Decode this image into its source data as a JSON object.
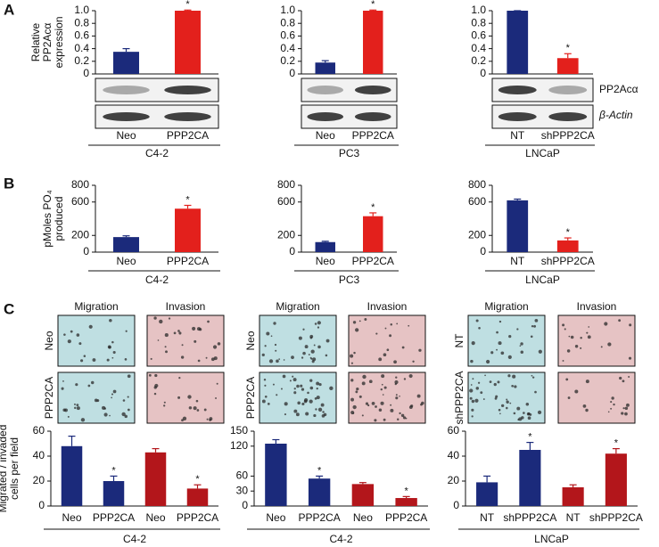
{
  "panel_labels": [
    "A",
    "B",
    "C"
  ],
  "blot_labels": [
    "PP2Acα",
    "β-Actin"
  ],
  "micrographs": [
    {
      "columns": [
        "Migration",
        "Invasion"
      ],
      "rows": [
        "Neo",
        "PPP2CA"
      ]
    },
    {
      "columns": [
        "Migration",
        "Invasion"
      ],
      "rows": [
        "Neo",
        "PPP2CA"
      ]
    },
    {
      "columns": [
        "Migration",
        "Invasion"
      ],
      "rows": [
        "NT",
        "shPPP2CA"
      ]
    }
  ],
  "chart_data": [
    {
      "type": "bar",
      "ylabel": [
        "Relative",
        "PP2Acα",
        "expression"
      ],
      "group_label": "C4-2",
      "categories": [
        "Neo",
        "PPP2CA"
      ],
      "values": [
        0.35,
        1.0
      ],
      "errors": [
        0.05,
        0.01
      ],
      "colors": [
        "#1b2a7b",
        "#e3201c"
      ],
      "significant": [
        false,
        true
      ],
      "star": "*",
      "ylim": [
        0,
        1.0
      ],
      "yticks": [
        0,
        0.2,
        0.4,
        0.6,
        0.8,
        {
          "value": 1.0,
          "label": "1.0"
        }
      ]
    },
    {
      "type": "bar",
      "group_label": "PC3",
      "categories": [
        "Neo",
        "PPP2CA"
      ],
      "values": [
        0.18,
        1.0
      ],
      "errors": [
        0.03,
        0.01
      ],
      "colors": [
        "#1b2a7b",
        "#e3201c"
      ],
      "significant": [
        false,
        true
      ],
      "star": "*",
      "ylim": [
        0,
        1.0
      ],
      "yticks": [
        0,
        0.2,
        0.4,
        0.6,
        0.8,
        {
          "value": 1.0,
          "label": "1.0"
        }
      ]
    },
    {
      "type": "bar",
      "group_label": "LNCaP",
      "categories": [
        "NT",
        "shPPP2CA"
      ],
      "values": [
        1.0,
        0.25
      ],
      "errors": [
        0,
        0.07
      ],
      "colors": [
        "#1b2a7b",
        "#e3201c"
      ],
      "significant": [
        false,
        true
      ],
      "star": "*",
      "ylim": [
        0,
        1.0
      ],
      "yticks": [
        0,
        0.2,
        0.4,
        0.6,
        0.8,
        {
          "value": 1.0,
          "label": "1.0"
        }
      ]
    },
    {
      "type": "bar",
      "ylabel": [
        "pMoles PO₄",
        "produced"
      ],
      "group_label": "C4-2",
      "categories": [
        "Neo",
        "PPP2CA"
      ],
      "values": [
        180,
        520
      ],
      "errors": [
        15,
        40
      ],
      "colors": [
        "#1b2a7b",
        "#e3201c"
      ],
      "significant": [
        false,
        true
      ],
      "star": "*",
      "ylim": [
        0,
        800
      ],
      "yticks": [
        0,
        200,
        600,
        800
      ]
    },
    {
      "type": "bar",
      "group_label": "PC3",
      "categories": [
        "Neo",
        "PPP2CA"
      ],
      "values": [
        120,
        430
      ],
      "errors": [
        10,
        40
      ],
      "colors": [
        "#1b2a7b",
        "#e3201c"
      ],
      "significant": [
        false,
        true
      ],
      "star": "*",
      "ylim": [
        0,
        800
      ],
      "yticks": [
        0,
        200,
        600,
        800
      ]
    },
    {
      "type": "bar",
      "group_label": "LNCaP",
      "categories": [
        "NT",
        "shPPP2CA"
      ],
      "values": [
        620,
        140
      ],
      "errors": [
        15,
        30
      ],
      "colors": [
        "#1b2a7b",
        "#e3201c"
      ],
      "significant": [
        false,
        true
      ],
      "star": "*",
      "ylim": [
        0,
        800
      ],
      "yticks": [
        0,
        200,
        600,
        800
      ]
    },
    {
      "type": "bar",
      "ylabel": [
        "Migrated / invaded",
        "cells per field"
      ],
      "group_label": "C4-2",
      "categories": [
        "Neo",
        "PPP2CA",
        "Neo",
        "PPP2CA"
      ],
      "values": [
        48,
        20,
        43,
        14
      ],
      "errors": [
        8,
        4,
        3,
        3
      ],
      "colors": [
        "#1b2a7b",
        "#1b2a7b",
        "#b3161b",
        "#b3161b"
      ],
      "significant": [
        false,
        true,
        false,
        true
      ],
      "star": "*",
      "ylim": [
        0,
        60
      ],
      "yticks": [
        0,
        20,
        40,
        60
      ]
    },
    {
      "type": "bar",
      "group_label": "C4-2",
      "categories": [
        "Neo",
        "PPP2CA",
        "Neo",
        "PPP2CA"
      ],
      "values": [
        125,
        55,
        44,
        16
      ],
      "errors": [
        8,
        5,
        3,
        3
      ],
      "colors": [
        "#1b2a7b",
        "#1b2a7b",
        "#b3161b",
        "#b3161b"
      ],
      "significant": [
        false,
        true,
        false,
        true
      ],
      "star": "*",
      "ylim": [
        0,
        150
      ],
      "yticks": [
        0,
        30,
        60,
        120,
        150
      ]
    },
    {
      "type": "bar",
      "group_label": "LNCaP",
      "categories": [
        "NT",
        "shPPP2CA",
        "NT",
        "shPPP2CA"
      ],
      "values": [
        19,
        45,
        15,
        42
      ],
      "errors": [
        5,
        6,
        2,
        4
      ],
      "colors": [
        "#1b2a7b",
        "#1b2a7b",
        "#b3161b",
        "#b3161b"
      ],
      "significant": [
        false,
        true,
        false,
        true
      ],
      "star": "*",
      "ylim": [
        0,
        60
      ],
      "yticks": [
        0,
        20,
        40,
        60
      ]
    }
  ]
}
